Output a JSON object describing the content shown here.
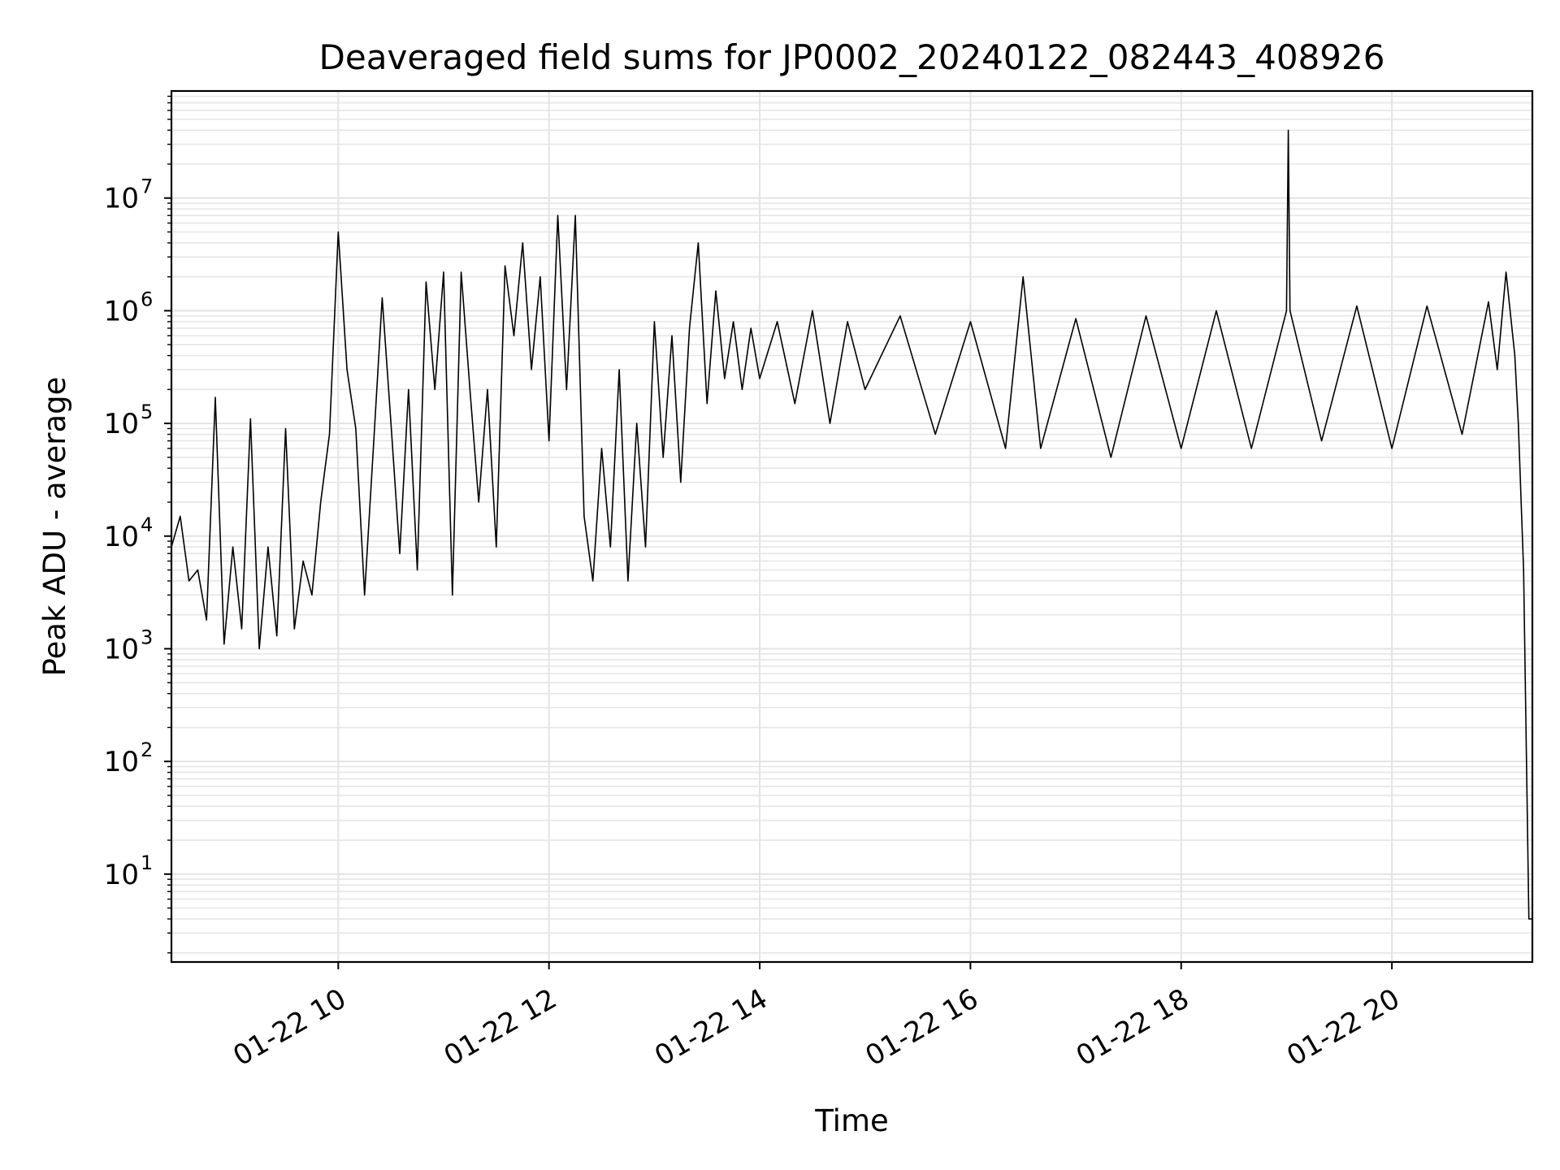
{
  "chart_data": {
    "type": "line",
    "title": "Deaveraged field sums for JP0002_20240122_082443_408926",
    "xlabel": "Time",
    "ylabel": "Peak ADU - average",
    "yscale": "log",
    "grid": true,
    "xlim": [
      "01-22 08:25",
      "01-22 21:20"
    ],
    "ylim_exponent": [
      0.22,
      7.95
    ],
    "x_ticks": [
      "01-22 10",
      "01-22 12",
      "01-22 14",
      "01-22 16",
      "01-22 18",
      "01-22 20"
    ],
    "y_ticks": [
      {
        "base": "10",
        "exp": "1"
      },
      {
        "base": "10",
        "exp": "2"
      },
      {
        "base": "10",
        "exp": "3"
      },
      {
        "base": "10",
        "exp": "4"
      },
      {
        "base": "10",
        "exp": "5"
      },
      {
        "base": "10",
        "exp": "6"
      },
      {
        "base": "10",
        "exp": "7"
      }
    ],
    "series": [
      {
        "color": "#000000",
        "points": [
          [
            "01-22 08:25",
            8000
          ],
          [
            "01-22 08:30",
            15000
          ],
          [
            "01-22 08:35",
            4000
          ],
          [
            "01-22 08:40",
            5000
          ],
          [
            "01-22 08:45",
            1800
          ],
          [
            "01-22 08:50",
            170000
          ],
          [
            "01-22 08:55",
            1100
          ],
          [
            "01-22 09:00",
            8000
          ],
          [
            "01-22 09:05",
            1500
          ],
          [
            "01-22 09:10",
            110000
          ],
          [
            "01-22 09:15",
            1000
          ],
          [
            "01-22 09:20",
            8000
          ],
          [
            "01-22 09:25",
            1300
          ],
          [
            "01-22 09:30",
            90000
          ],
          [
            "01-22 09:35",
            1500
          ],
          [
            "01-22 09:40",
            6000
          ],
          [
            "01-22 09:45",
            3000
          ],
          [
            "01-22 09:50",
            20000
          ],
          [
            "01-22 09:55",
            80000
          ],
          [
            "01-22 10:00",
            5000000
          ],
          [
            "01-22 10:05",
            300000
          ],
          [
            "01-22 10:10",
            90000
          ],
          [
            "01-22 10:15",
            3000
          ],
          [
            "01-22 10:20",
            60000
          ],
          [
            "01-22 10:25",
            1300000
          ],
          [
            "01-22 10:30",
            100000
          ],
          [
            "01-22 10:35",
            7000
          ],
          [
            "01-22 10:40",
            200000
          ],
          [
            "01-22 10:45",
            5000
          ],
          [
            "01-22 10:50",
            1800000
          ],
          [
            "01-22 10:55",
            200000
          ],
          [
            "01-22 11:00",
            2200000
          ],
          [
            "01-22 11:05",
            3000
          ],
          [
            "01-22 11:10",
            2200000
          ],
          [
            "01-22 11:15",
            200000
          ],
          [
            "01-22 11:20",
            20000
          ],
          [
            "01-22 11:25",
            200000
          ],
          [
            "01-22 11:30",
            8000
          ],
          [
            "01-22 11:35",
            2500000
          ],
          [
            "01-22 11:40",
            600000
          ],
          [
            "01-22 11:45",
            4000000
          ],
          [
            "01-22 11:50",
            300000
          ],
          [
            "01-22 11:55",
            2000000
          ],
          [
            "01-22 12:00",
            70000
          ],
          [
            "01-22 12:05",
            7000000
          ],
          [
            "01-22 12:10",
            200000
          ],
          [
            "01-22 12:15",
            7000000
          ],
          [
            "01-22 12:20",
            15000
          ],
          [
            "01-22 12:25",
            4000
          ],
          [
            "01-22 12:30",
            60000
          ],
          [
            "01-22 12:35",
            8000
          ],
          [
            "01-22 12:40",
            300000
          ],
          [
            "01-22 12:45",
            4000
          ],
          [
            "01-22 12:50",
            100000
          ],
          [
            "01-22 12:55",
            8000
          ],
          [
            "01-22 13:00",
            800000
          ],
          [
            "01-22 13:05",
            50000
          ],
          [
            "01-22 13:10",
            600000
          ],
          [
            "01-22 13:15",
            30000
          ],
          [
            "01-22 13:20",
            700000
          ],
          [
            "01-22 13:25",
            4000000
          ],
          [
            "01-22 13:30",
            150000
          ],
          [
            "01-22 13:35",
            1500000
          ],
          [
            "01-22 13:40",
            250000
          ],
          [
            "01-22 13:45",
            800000
          ],
          [
            "01-22 13:50",
            200000
          ],
          [
            "01-22 13:55",
            700000
          ],
          [
            "01-22 14:00",
            250000
          ],
          [
            "01-22 14:10",
            800000
          ],
          [
            "01-22 14:20",
            150000
          ],
          [
            "01-22 14:30",
            1000000
          ],
          [
            "01-22 14:40",
            100000
          ],
          [
            "01-22 14:50",
            800000
          ],
          [
            "01-22 15:00",
            200000
          ],
          [
            "01-22 15:20",
            900000
          ],
          [
            "01-22 15:40",
            80000
          ],
          [
            "01-22 16:00",
            800000
          ],
          [
            "01-22 16:20",
            60000
          ],
          [
            "01-22 16:30",
            2000000
          ],
          [
            "01-22 16:40",
            60000
          ],
          [
            "01-22 17:00",
            850000
          ],
          [
            "01-22 17:20",
            50000
          ],
          [
            "01-22 17:40",
            900000
          ],
          [
            "01-22 18:00",
            60000
          ],
          [
            "01-22 18:20",
            1000000
          ],
          [
            "01-22 18:40",
            60000
          ],
          [
            "01-22 19:00",
            1000000
          ],
          [
            "01-22 19:01",
            40000000
          ],
          [
            "01-22 19:02",
            1000000
          ],
          [
            "01-22 19:20",
            70000
          ],
          [
            "01-22 19:40",
            1100000
          ],
          [
            "01-22 20:00",
            60000
          ],
          [
            "01-22 20:20",
            1100000
          ],
          [
            "01-22 20:40",
            80000
          ],
          [
            "01-22 20:55",
            1200000
          ],
          [
            "01-22 21:00",
            300000
          ],
          [
            "01-22 21:05",
            2200000
          ],
          [
            "01-22 21:10",
            400000
          ],
          [
            "01-22 21:12",
            100000
          ],
          [
            "01-22 21:15",
            5000
          ],
          [
            "01-22 21:18",
            4
          ],
          [
            "01-22 21:20",
            4
          ]
        ]
      }
    ]
  }
}
